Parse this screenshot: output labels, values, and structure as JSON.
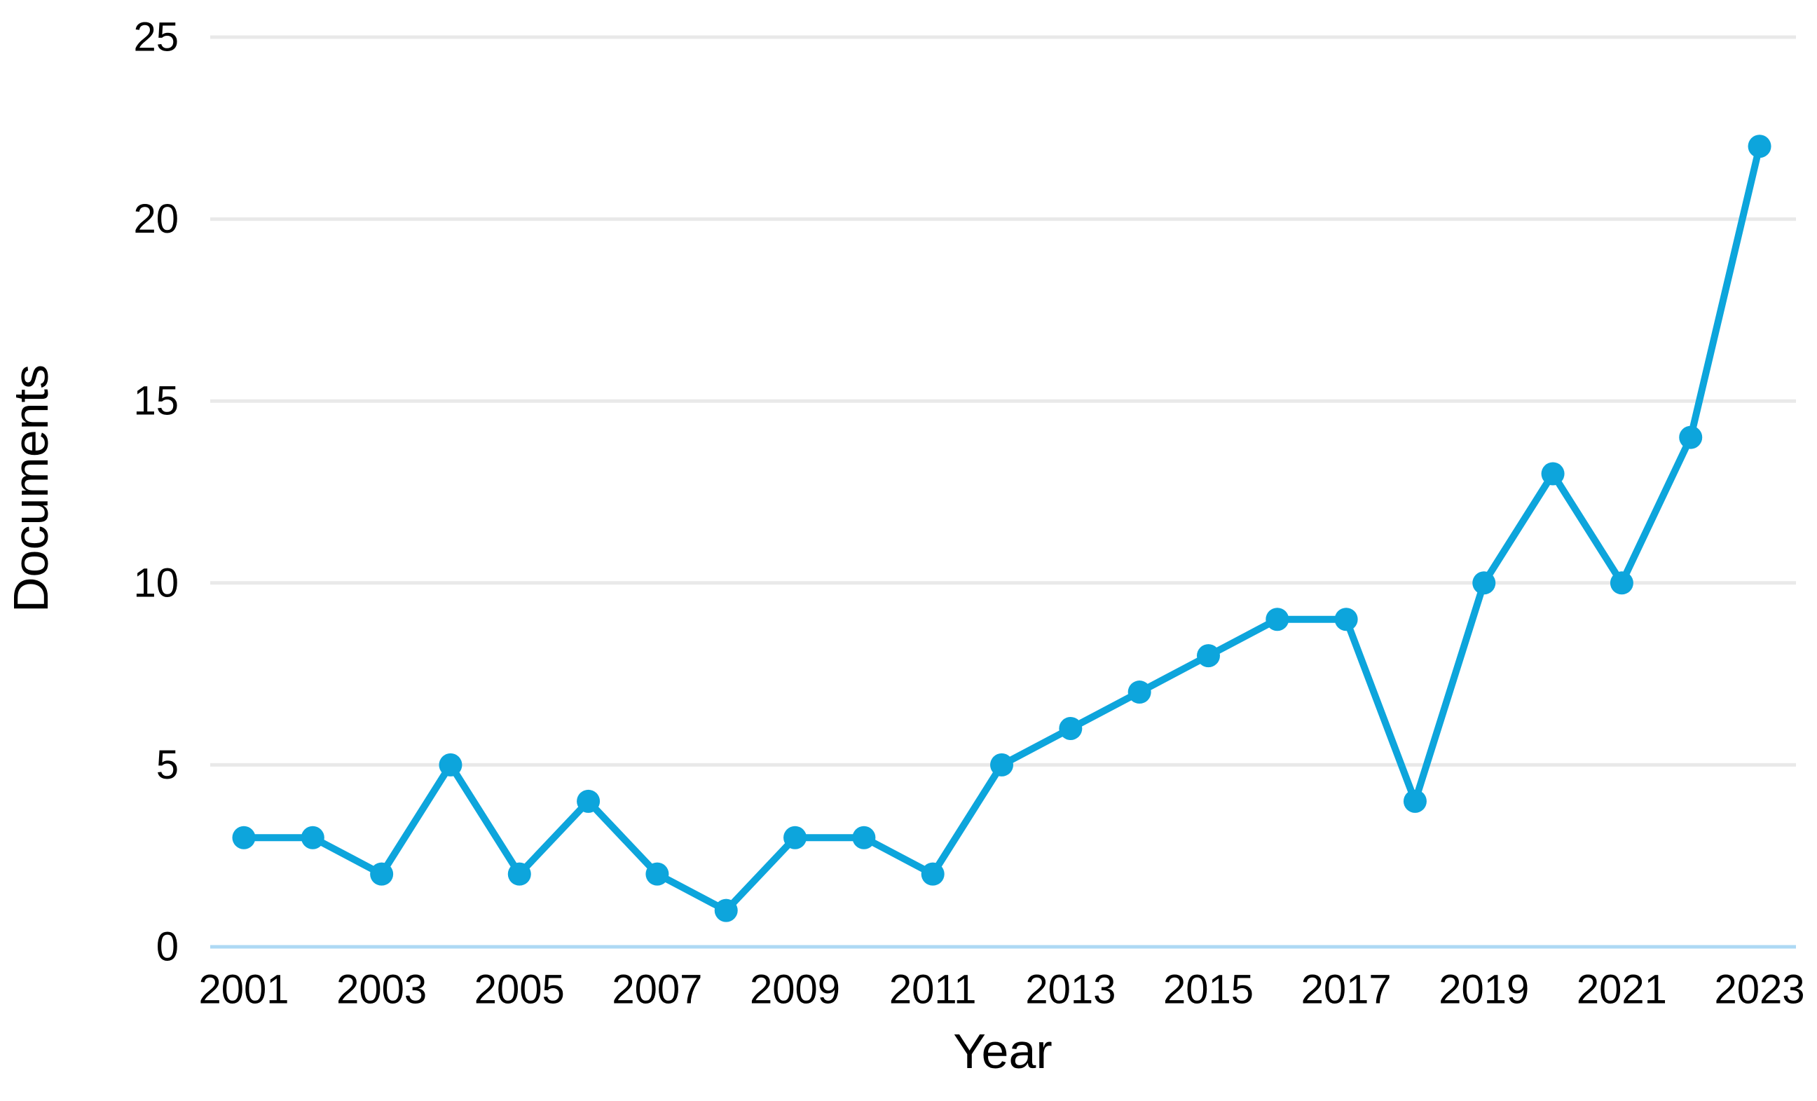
{
  "chart_data": {
    "type": "line",
    "title": "",
    "xlabel": "Year",
    "ylabel": "Documents",
    "x": [
      2001,
      2002,
      2003,
      2004,
      2005,
      2006,
      2007,
      2008,
      2009,
      2010,
      2011,
      2012,
      2013,
      2014,
      2015,
      2016,
      2017,
      2018,
      2019,
      2020,
      2021,
      2022,
      2023
    ],
    "series": [
      {
        "name": "Documents",
        "values": [
          3,
          3,
          2,
          5,
          2,
          4,
          2,
          1,
          3,
          3,
          2,
          5,
          6,
          7,
          8,
          9,
          9,
          4,
          10,
          13,
          10,
          14,
          22
        ]
      }
    ],
    "ylim": [
      0,
      25
    ],
    "yticks": [
      0,
      5,
      10,
      15,
      20,
      25
    ],
    "xticks": [
      2001,
      2003,
      2005,
      2007,
      2009,
      2011,
      2013,
      2015,
      2017,
      2019,
      2021,
      2023
    ],
    "grid": "horizontal-only",
    "legend_position": "none",
    "colors": {
      "line": "#0DA5DC",
      "marker": "#0DA5DC",
      "gridline": "#E9E9E9",
      "zero_axis": "#AED9F4",
      "text": "#000000",
      "background": "#FFFFFF"
    }
  }
}
